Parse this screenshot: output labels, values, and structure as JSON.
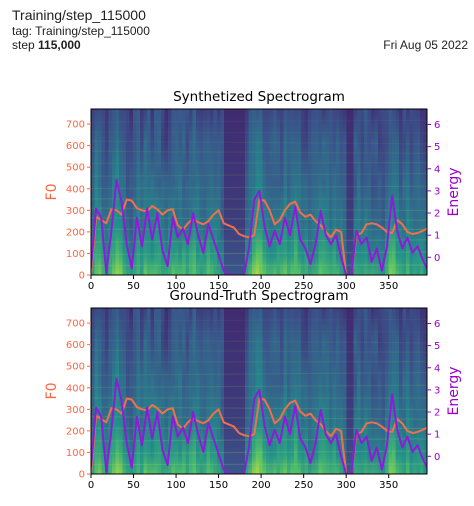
{
  "header": {
    "title": "Training/step_115000",
    "tag_prefix": "tag: ",
    "tag": "Training/step_115000",
    "step_prefix": "step ",
    "step": "115,000",
    "date": "Fri Aug 05 2022"
  },
  "figure": {
    "colors": {
      "f0": "#f0704c",
      "energy": "#8e1bd9",
      "f0_axis": "#ff6640",
      "energy_axis": "#9a00cc"
    },
    "colormap": "viridis"
  },
  "chart_data": [
    {
      "type": "heatmap",
      "title": "Synthetized Spectrogram",
      "xlabel": "",
      "ylabel": "F0",
      "y2label": "Energy",
      "xlim": [
        0,
        395
      ],
      "ylim": [
        0,
        770
      ],
      "y2lim": [
        -0.8,
        6.7
      ],
      "x_ticks": [
        0,
        50,
        100,
        150,
        200,
        250,
        300,
        350
      ],
      "y_ticks": [
        0,
        100,
        200,
        300,
        400,
        500,
        600,
        700
      ],
      "y2_ticks": [
        0,
        1,
        2,
        3,
        4,
        5,
        6
      ],
      "series": [
        {
          "name": "F0",
          "x": [
            0,
            6,
            12,
            18,
            24,
            30,
            36,
            42,
            48,
            54,
            60,
            66,
            72,
            78,
            84,
            90,
            96,
            102,
            108,
            114,
            120,
            126,
            132,
            138,
            144,
            150,
            156,
            162,
            168,
            174,
            180,
            186,
            192,
            198,
            204,
            210,
            216,
            222,
            228,
            234,
            240,
            246,
            252,
            258,
            264,
            270,
            276,
            282,
            288,
            294,
            300,
            306,
            312,
            318,
            324,
            330,
            336,
            342,
            348,
            354,
            360,
            366,
            372,
            378,
            384,
            390,
            395
          ],
          "values": [
            0,
            270,
            255,
            240,
            305,
            300,
            280,
            350,
            345,
            310,
            300,
            295,
            320,
            305,
            280,
            300,
            305,
            230,
            210,
            240,
            260,
            245,
            235,
            250,
            280,
            300,
            240,
            230,
            220,
            190,
            180,
            175,
            185,
            350,
            345,
            300,
            235,
            255,
            300,
            330,
            340,
            290,
            270,
            280,
            250,
            230,
            200,
            175,
            210,
            200,
            0,
            0,
            185,
            195,
            235,
            240,
            235,
            220,
            200,
            195,
            255,
            235,
            200,
            190,
            195,
            205,
            215
          ]
        },
        {
          "name": "Energy",
          "x": [
            0,
            6,
            12,
            18,
            24,
            30,
            36,
            42,
            48,
            54,
            60,
            66,
            72,
            78,
            84,
            90,
            96,
            102,
            108,
            114,
            120,
            126,
            132,
            138,
            144,
            150,
            156,
            162,
            168,
            174,
            180,
            186,
            192,
            198,
            204,
            210,
            216,
            222,
            228,
            234,
            240,
            246,
            252,
            258,
            264,
            270,
            276,
            282,
            288,
            294,
            300,
            306,
            312,
            318,
            324,
            330,
            336,
            342,
            348,
            354,
            360,
            366,
            372,
            378,
            384,
            390,
            395
          ],
          "values": [
            -0.5,
            2.2,
            1.8,
            -0.7,
            1.2,
            3.5,
            2.5,
            0.6,
            -0.5,
            1.8,
            0.5,
            2.2,
            0.8,
            2.0,
            0.3,
            -0.4,
            1.8,
            0.9,
            1.3,
            0.6,
            2.0,
            1.0,
            0.2,
            1.5,
            0.8,
            0.1,
            -0.6,
            -0.8,
            -0.8,
            -0.8,
            -0.8,
            0.5,
            2.6,
            3.0,
            1.4,
            0.5,
            1.2,
            0.6,
            1.8,
            1.0,
            2.3,
            0.8,
            0.4,
            -0.3,
            0.6,
            2.1,
            1.0,
            0.6,
            1.0,
            0.0,
            -0.8,
            -0.8,
            1.2,
            0.6,
            0.9,
            -0.2,
            0.4,
            -0.6,
            0.5,
            2.8,
            1.2,
            0.4,
            0.9,
            0.2,
            0.5,
            -0.1,
            -0.5
          ]
        }
      ]
    },
    {
      "type": "heatmap",
      "title": "Ground-Truth Spectrogram",
      "xlabel": "",
      "ylabel": "F0",
      "y2label": "Energy",
      "xlim": [
        0,
        395
      ],
      "ylim": [
        0,
        770
      ],
      "y2lim": [
        -0.8,
        6.7
      ],
      "x_ticks": [
        0,
        50,
        100,
        150,
        200,
        250,
        300,
        350
      ],
      "y_ticks": [
        0,
        100,
        200,
        300,
        400,
        500,
        600,
        700
      ],
      "y2_ticks": [
        0,
        1,
        2,
        3,
        4,
        5,
        6
      ],
      "series": [
        {
          "name": "F0",
          "x": [
            0,
            6,
            12,
            18,
            24,
            30,
            36,
            42,
            48,
            54,
            60,
            66,
            72,
            78,
            84,
            90,
            96,
            102,
            108,
            114,
            120,
            126,
            132,
            138,
            144,
            150,
            156,
            162,
            168,
            174,
            180,
            186,
            192,
            198,
            204,
            210,
            216,
            222,
            228,
            234,
            240,
            246,
            252,
            258,
            264,
            270,
            276,
            282,
            288,
            294,
            300,
            306,
            312,
            318,
            324,
            330,
            336,
            342,
            348,
            354,
            360,
            366,
            372,
            378,
            384,
            390,
            395
          ],
          "values": [
            0,
            270,
            255,
            240,
            305,
            300,
            280,
            350,
            345,
            310,
            300,
            295,
            320,
            305,
            280,
            300,
            305,
            230,
            210,
            240,
            260,
            245,
            235,
            250,
            280,
            300,
            240,
            230,
            220,
            190,
            180,
            175,
            185,
            350,
            345,
            300,
            235,
            255,
            300,
            330,
            340,
            290,
            270,
            280,
            250,
            230,
            200,
            175,
            210,
            200,
            0,
            0,
            185,
            195,
            235,
            240,
            235,
            220,
            200,
            195,
            255,
            235,
            200,
            190,
            195,
            205,
            215
          ]
        },
        {
          "name": "Energy",
          "x": [
            0,
            6,
            12,
            18,
            24,
            30,
            36,
            42,
            48,
            54,
            60,
            66,
            72,
            78,
            84,
            90,
            96,
            102,
            108,
            114,
            120,
            126,
            132,
            138,
            144,
            150,
            156,
            162,
            168,
            174,
            180,
            186,
            192,
            198,
            204,
            210,
            216,
            222,
            228,
            234,
            240,
            246,
            252,
            258,
            264,
            270,
            276,
            282,
            288,
            294,
            300,
            306,
            312,
            318,
            324,
            330,
            336,
            342,
            348,
            354,
            360,
            366,
            372,
            378,
            384,
            390,
            395
          ],
          "values": [
            -0.5,
            2.2,
            1.8,
            -0.7,
            1.2,
            3.5,
            2.5,
            0.6,
            -0.5,
            1.8,
            0.5,
            2.2,
            0.8,
            2.0,
            0.3,
            -0.4,
            1.8,
            0.9,
            1.3,
            0.6,
            2.0,
            1.0,
            0.2,
            1.5,
            0.8,
            0.1,
            -0.6,
            -0.8,
            -0.8,
            -0.8,
            -0.8,
            0.5,
            2.6,
            3.0,
            1.4,
            0.5,
            1.2,
            0.6,
            1.8,
            1.0,
            2.3,
            0.8,
            0.4,
            -0.3,
            0.6,
            2.1,
            1.0,
            0.6,
            1.0,
            0.0,
            -0.8,
            -0.8,
            1.2,
            0.6,
            0.9,
            -0.2,
            0.4,
            -0.6,
            0.5,
            2.8,
            1.2,
            0.4,
            0.9,
            0.2,
            0.5,
            -0.1,
            -0.5
          ]
        }
      ]
    }
  ]
}
